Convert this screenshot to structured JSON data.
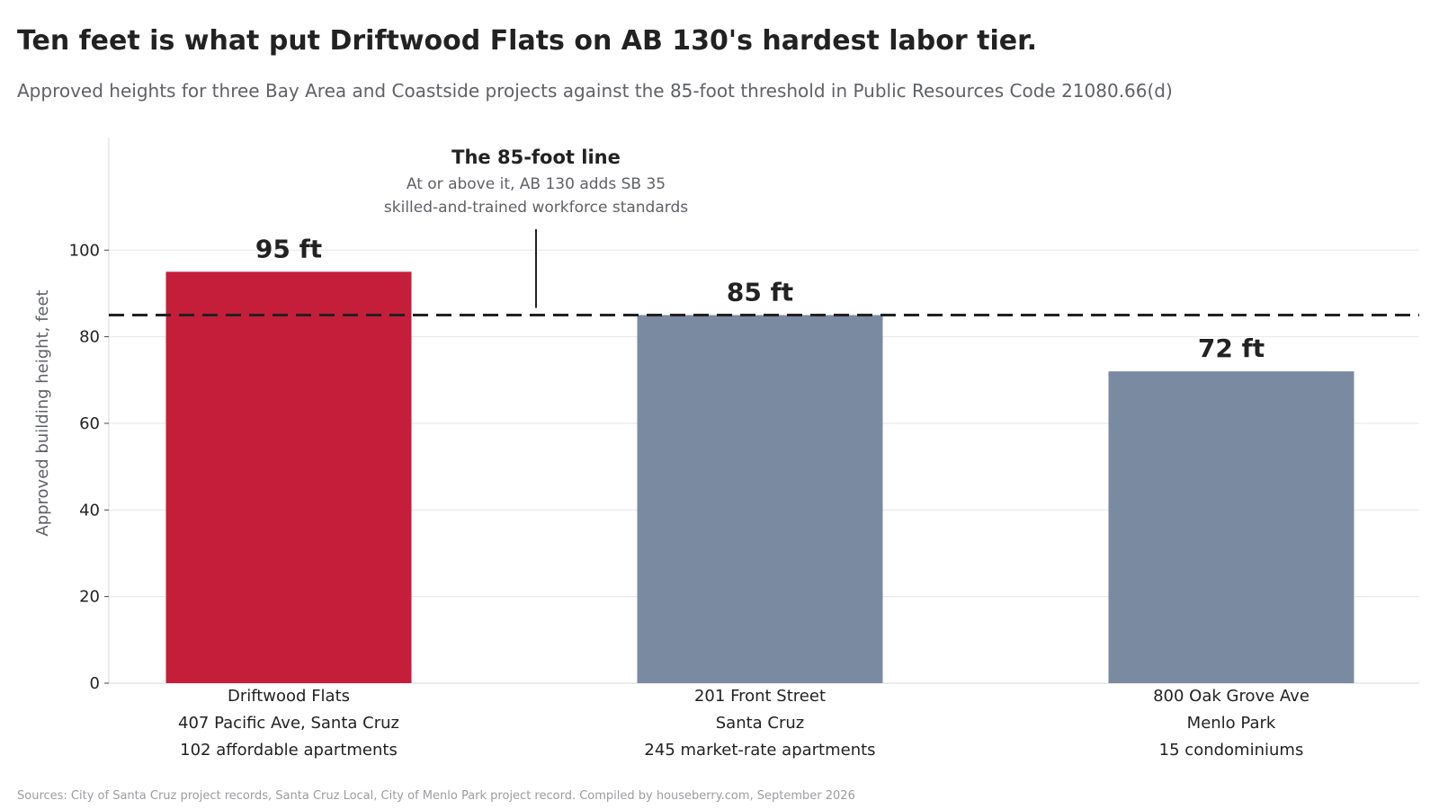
{
  "title": "Ten feet is what put Driftwood Flats on AB 130's hardest labor tier.",
  "subtitle": "Approved heights for three Bay Area and Coastside projects against the 85-foot threshold in Public Resources Code 21080.66(d)",
  "source": "Sources: City of Santa Cruz project records, Santa Cruz Local, City of Menlo Park project record. Compiled by houseberry.com, September 2026",
  "chart_data": {
    "type": "bar",
    "ylabel": "Approved building height, feet",
    "xlabel": "",
    "ylim": [
      0,
      126
    ],
    "yticks": [
      0,
      20,
      40,
      60,
      80,
      100
    ],
    "grid": true,
    "categories": [
      {
        "lines": [
          "Driftwood Flats",
          "407 Pacific Ave, Santa Cruz",
          "102 affordable apartments"
        ],
        "value": 95,
        "value_label": "95 ft",
        "color": "#c41e3a"
      },
      {
        "lines": [
          "201 Front Street",
          "Santa Cruz",
          "245 market-rate apartments"
        ],
        "value": 85,
        "value_label": "85 ft",
        "color": "#7a8aa0"
      },
      {
        "lines": [
          "800 Oak Grove Ave",
          "Menlo Park",
          "15 condominiums"
        ],
        "value": 72,
        "value_label": "72 ft",
        "color": "#7a8aa0"
      }
    ],
    "threshold": {
      "value": 85,
      "style": "dashed",
      "color": "#222222"
    },
    "annotation": {
      "title": "The 85-foot line",
      "lines": [
        "At or above it, AB 130 adds SB 35",
        "skilled-and-trained workforce standards"
      ]
    }
  }
}
